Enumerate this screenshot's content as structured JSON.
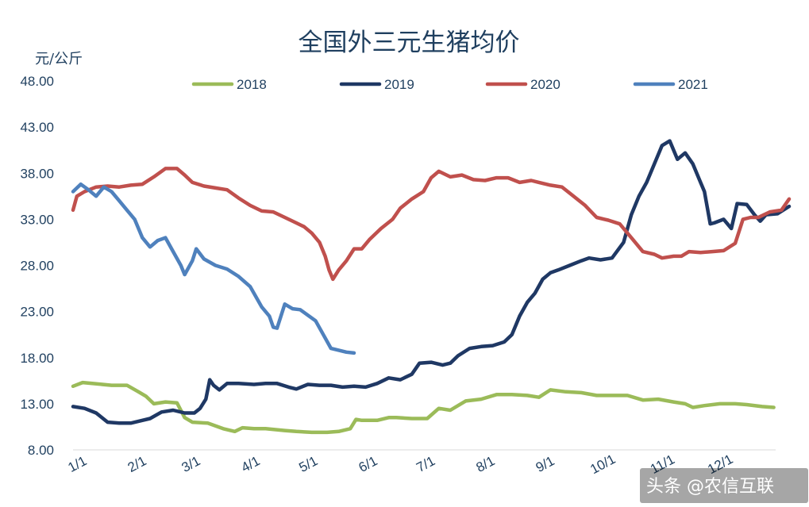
{
  "chart_data": {
    "type": "line",
    "title": "全国外三元生猪均价",
    "ylabel": "元/公斤",
    "xlabel": "",
    "ylim": [
      8,
      48
    ],
    "yticks": [
      "48.00",
      "43.00",
      "38.00",
      "33.00",
      "28.00",
      "23.00",
      "18.00",
      "13.00",
      "8.00"
    ],
    "x_domain": [
      0,
      365
    ],
    "xticks": [
      {
        "label": "1/1",
        "day": 0
      },
      {
        "label": "2/1",
        "day": 31
      },
      {
        "label": "3/1",
        "day": 59
      },
      {
        "label": "4/1",
        "day": 90
      },
      {
        "label": "5/1",
        "day": 120
      },
      {
        "label": "6/1",
        "day": 151
      },
      {
        "label": "7/1",
        "day": 181
      },
      {
        "label": "8/1",
        "day": 212
      },
      {
        "label": "9/1",
        "day": 243
      },
      {
        "label": "10/1",
        "day": 273
      },
      {
        "label": "11/1",
        "day": 304
      },
      {
        "label": "12/1",
        "day": 334
      }
    ],
    "legend_position": "top",
    "grid": false,
    "series": [
      {
        "name": "2018",
        "color": "#9bbb59",
        "points": [
          [
            0,
            14.9
          ],
          [
            5,
            15.3
          ],
          [
            10,
            15.2
          ],
          [
            20,
            15.0
          ],
          [
            28,
            15.0
          ],
          [
            34,
            14.3
          ],
          [
            38,
            13.8
          ],
          [
            42,
            13.0
          ],
          [
            48,
            13.2
          ],
          [
            54,
            13.1
          ],
          [
            58,
            11.5
          ],
          [
            62,
            11.0
          ],
          [
            70,
            10.9
          ],
          [
            78,
            10.3
          ],
          [
            84,
            10.0
          ],
          [
            88,
            10.4
          ],
          [
            94,
            10.3
          ],
          [
            100,
            10.3
          ],
          [
            110,
            10.1
          ],
          [
            116,
            10.0
          ],
          [
            124,
            9.9
          ],
          [
            132,
            9.9
          ],
          [
            138,
            10.0
          ],
          [
            144,
            10.3
          ],
          [
            147,
            11.3
          ],
          [
            150,
            11.2
          ],
          [
            158,
            11.2
          ],
          [
            164,
            11.5
          ],
          [
            168,
            11.5
          ],
          [
            176,
            11.4
          ],
          [
            184,
            11.4
          ],
          [
            190,
            12.5
          ],
          [
            196,
            12.3
          ],
          [
            204,
            13.3
          ],
          [
            212,
            13.5
          ],
          [
            220,
            14.0
          ],
          [
            228,
            14.0
          ],
          [
            236,
            13.9
          ],
          [
            242,
            13.7
          ],
          [
            248,
            14.5
          ],
          [
            256,
            14.3
          ],
          [
            264,
            14.2
          ],
          [
            272,
            13.9
          ],
          [
            280,
            13.9
          ],
          [
            288,
            13.9
          ],
          [
            296,
            13.4
          ],
          [
            304,
            13.5
          ],
          [
            312,
            13.2
          ],
          [
            318,
            13.0
          ],
          [
            322,
            12.6
          ],
          [
            328,
            12.8
          ],
          [
            336,
            13.0
          ],
          [
            344,
            13.0
          ],
          [
            350,
            12.9
          ],
          [
            358,
            12.7
          ],
          [
            364,
            12.6
          ]
        ]
      },
      {
        "name": "2019",
        "color": "#1f3864",
        "points": [
          [
            0,
            12.7
          ],
          [
            6,
            12.5
          ],
          [
            12,
            12.0
          ],
          [
            18,
            11.0
          ],
          [
            24,
            10.9
          ],
          [
            30,
            10.9
          ],
          [
            36,
            11.2
          ],
          [
            40,
            11.4
          ],
          [
            46,
            12.1
          ],
          [
            52,
            12.3
          ],
          [
            58,
            12.0
          ],
          [
            63,
            12.0
          ],
          [
            66,
            12.5
          ],
          [
            69,
            13.5
          ],
          [
            71,
            15.6
          ],
          [
            73,
            15.0
          ],
          [
            76,
            14.5
          ],
          [
            80,
            15.2
          ],
          [
            86,
            15.2
          ],
          [
            94,
            15.1
          ],
          [
            100,
            15.2
          ],
          [
            106,
            15.2
          ],
          [
            112,
            14.8
          ],
          [
            116,
            14.6
          ],
          [
            122,
            15.1
          ],
          [
            128,
            15.0
          ],
          [
            134,
            15.0
          ],
          [
            140,
            14.8
          ],
          [
            146,
            14.9
          ],
          [
            152,
            14.8
          ],
          [
            158,
            15.2
          ],
          [
            164,
            15.8
          ],
          [
            170,
            15.6
          ],
          [
            176,
            16.2
          ],
          [
            180,
            17.4
          ],
          [
            186,
            17.5
          ],
          [
            192,
            17.2
          ],
          [
            196,
            17.4
          ],
          [
            200,
            18.2
          ],
          [
            206,
            19.0
          ],
          [
            212,
            19.2
          ],
          [
            218,
            19.3
          ],
          [
            224,
            19.7
          ],
          [
            228,
            20.5
          ],
          [
            232,
            22.5
          ],
          [
            236,
            24.0
          ],
          [
            240,
            25.0
          ],
          [
            244,
            26.5
          ],
          [
            248,
            27.2
          ],
          [
            252,
            27.5
          ],
          [
            258,
            28.0
          ],
          [
            264,
            28.5
          ],
          [
            268,
            28.8
          ],
          [
            274,
            28.6
          ],
          [
            280,
            28.8
          ],
          [
            286,
            30.5
          ],
          [
            290,
            33.5
          ],
          [
            294,
            35.5
          ],
          [
            298,
            37.0
          ],
          [
            302,
            39.0
          ],
          [
            306,
            41.0
          ],
          [
            310,
            41.5
          ],
          [
            314,
            39.5
          ],
          [
            318,
            40.2
          ],
          [
            322,
            39.0
          ],
          [
            326,
            37.0
          ],
          [
            328,
            36.0
          ],
          [
            331,
            32.5
          ],
          [
            333,
            32.6
          ],
          [
            338,
            33.0
          ],
          [
            342,
            32.0
          ],
          [
            345,
            34.7
          ],
          [
            350,
            34.6
          ],
          [
            354,
            33.5
          ],
          [
            357,
            32.8
          ],
          [
            360,
            33.5
          ],
          [
            366,
            33.6
          ],
          [
            372,
            34.4
          ]
        ]
      },
      {
        "name": "2020",
        "color": "#c0504d",
        "points": [
          [
            0,
            34.0
          ],
          [
            2,
            35.5
          ],
          [
            6,
            36.0
          ],
          [
            12,
            36.5
          ],
          [
            18,
            36.6
          ],
          [
            24,
            36.5
          ],
          [
            30,
            36.7
          ],
          [
            36,
            36.8
          ],
          [
            42,
            37.6
          ],
          [
            48,
            38.5
          ],
          [
            54,
            38.5
          ],
          [
            58,
            37.8
          ],
          [
            62,
            37.0
          ],
          [
            68,
            36.6
          ],
          [
            74,
            36.4
          ],
          [
            80,
            36.2
          ],
          [
            86,
            35.3
          ],
          [
            92,
            34.5
          ],
          [
            98,
            33.9
          ],
          [
            104,
            33.8
          ],
          [
            110,
            33.2
          ],
          [
            116,
            32.6
          ],
          [
            120,
            32.2
          ],
          [
            124,
            31.5
          ],
          [
            128,
            30.5
          ],
          [
            131,
            29.0
          ],
          [
            133,
            27.5
          ],
          [
            135,
            26.5
          ],
          [
            138,
            27.5
          ],
          [
            142,
            28.5
          ],
          [
            146,
            29.8
          ],
          [
            150,
            29.8
          ],
          [
            154,
            30.8
          ],
          [
            160,
            32.0
          ],
          [
            166,
            33.0
          ],
          [
            170,
            34.2
          ],
          [
            176,
            35.2
          ],
          [
            182,
            36.0
          ],
          [
            186,
            37.5
          ],
          [
            190,
            38.2
          ],
          [
            196,
            37.6
          ],
          [
            202,
            37.8
          ],
          [
            208,
            37.3
          ],
          [
            214,
            37.2
          ],
          [
            220,
            37.5
          ],
          [
            226,
            37.5
          ],
          [
            232,
            37.0
          ],
          [
            238,
            37.2
          ],
          [
            242,
            37.0
          ],
          [
            248,
            36.7
          ],
          [
            254,
            36.5
          ],
          [
            260,
            35.5
          ],
          [
            266,
            34.5
          ],
          [
            272,
            33.2
          ],
          [
            278,
            32.9
          ],
          [
            284,
            32.5
          ],
          [
            290,
            31.0
          ],
          [
            296,
            29.5
          ],
          [
            302,
            29.2
          ],
          [
            306,
            28.8
          ],
          [
            312,
            29.0
          ],
          [
            316,
            29.0
          ],
          [
            320,
            29.5
          ],
          [
            326,
            29.4
          ],
          [
            332,
            29.5
          ],
          [
            338,
            29.6
          ],
          [
            344,
            30.4
          ],
          [
            348,
            33.0
          ],
          [
            352,
            33.2
          ],
          [
            356,
            33.2
          ],
          [
            362,
            33.8
          ],
          [
            368,
            34.0
          ],
          [
            372,
            35.2
          ]
        ]
      },
      {
        "name": "2021",
        "color": "#4f81bd",
        "points": [
          [
            0,
            36.0
          ],
          [
            4,
            36.8
          ],
          [
            8,
            36.2
          ],
          [
            12,
            35.5
          ],
          [
            16,
            36.5
          ],
          [
            20,
            36.0
          ],
          [
            24,
            35.0
          ],
          [
            28,
            34.0
          ],
          [
            32,
            33.0
          ],
          [
            36,
            31.0
          ],
          [
            40,
            30.0
          ],
          [
            44,
            30.7
          ],
          [
            48,
            31.0
          ],
          [
            52,
            29.5
          ],
          [
            56,
            28.0
          ],
          [
            58,
            27.0
          ],
          [
            62,
            28.5
          ],
          [
            64,
            29.8
          ],
          [
            68,
            28.7
          ],
          [
            74,
            28.0
          ],
          [
            80,
            27.6
          ],
          [
            86,
            26.8
          ],
          [
            92,
            25.7
          ],
          [
            98,
            23.5
          ],
          [
            102,
            22.5
          ],
          [
            104,
            21.3
          ],
          [
            106,
            21.2
          ],
          [
            110,
            23.8
          ],
          [
            114,
            23.3
          ],
          [
            118,
            23.2
          ],
          [
            122,
            22.6
          ],
          [
            126,
            22.0
          ],
          [
            130,
            20.5
          ],
          [
            134,
            19.0
          ],
          [
            138,
            18.8
          ],
          [
            142,
            18.6
          ],
          [
            146,
            18.5
          ]
        ]
      }
    ]
  },
  "watermark": "头条 @农信互联"
}
